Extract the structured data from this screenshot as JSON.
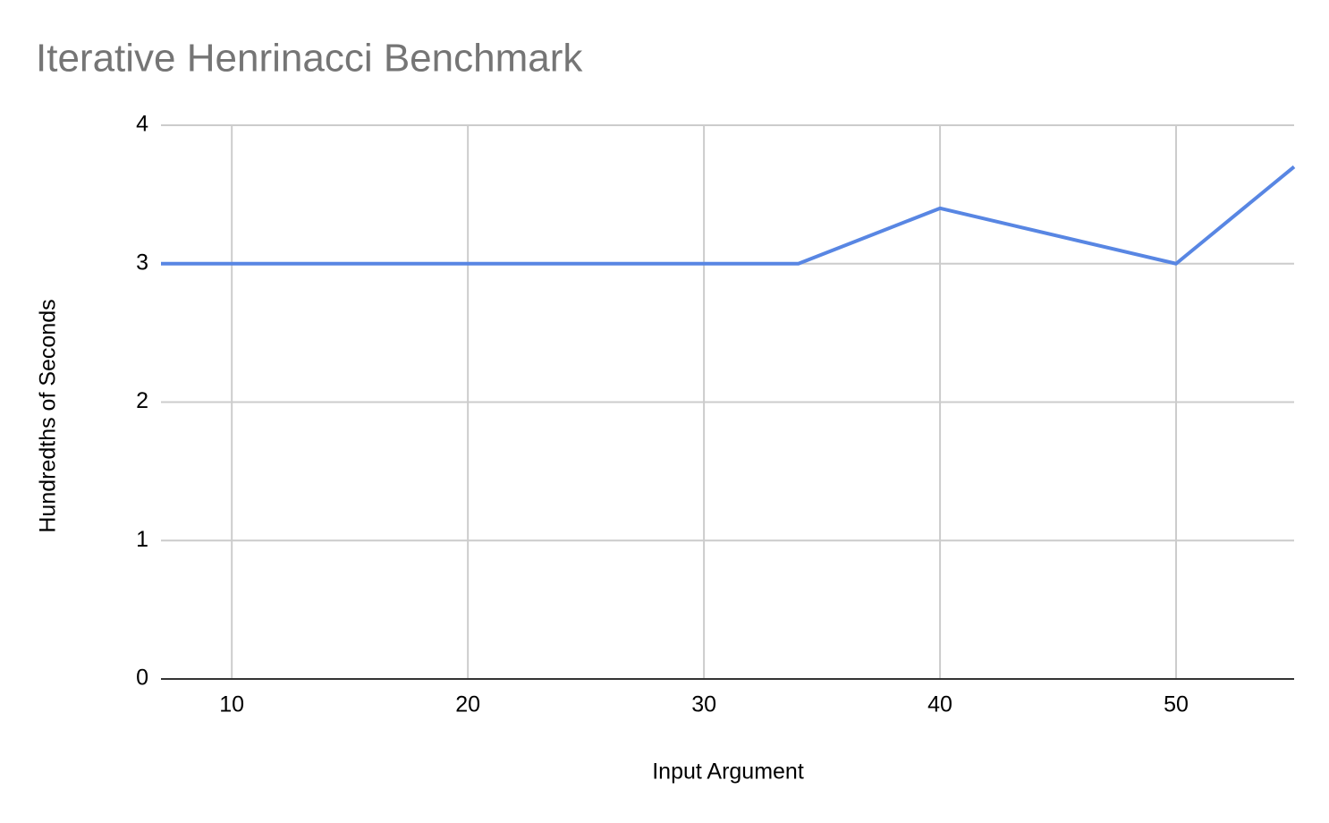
{
  "chart_data": {
    "type": "line",
    "title": "Iterative Henrinacci Benchmark",
    "x_label": "Input Argument",
    "y_label": "Hundredths of Seconds",
    "x": [
      7,
      34,
      40,
      50,
      55
    ],
    "series": [
      {
        "color": "#5886e3",
        "values": [
          3,
          3,
          3.4,
          3,
          3.7
        ]
      }
    ],
    "xlim": [
      7,
      55
    ],
    "xticks": [
      10,
      20,
      30,
      40,
      50
    ],
    "ylim": [
      0,
      4
    ],
    "yticks": [
      0,
      1,
      2,
      3,
      4
    ],
    "grid": true
  }
}
